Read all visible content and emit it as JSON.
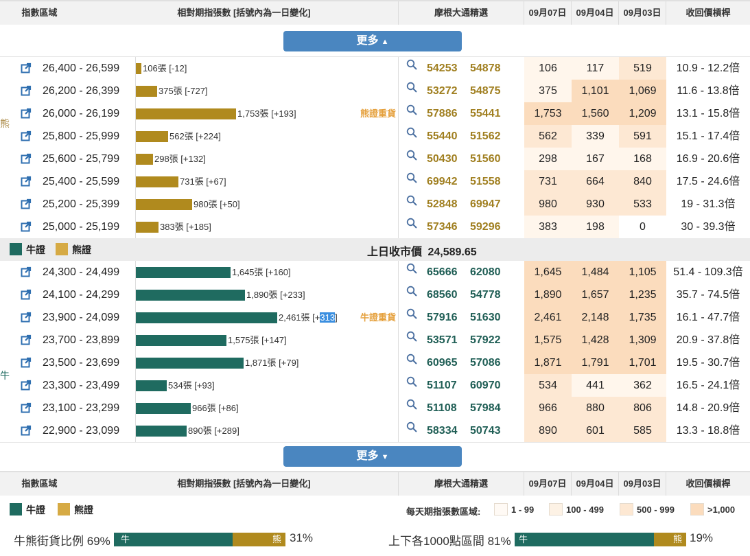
{
  "header": {
    "col_range": "指數區域",
    "col_bar": "相對期指張數 [括號內為一日變化]",
    "col_jpm": "摩根大通精選",
    "col_d1": "09月07日",
    "col_d2": "09月04日",
    "col_d3": "09月03日",
    "col_lev": "收回價槓桿"
  },
  "more_label": "更多",
  "bear_side_label": "熊",
  "bull_side_label": "牛",
  "bear_rows": [
    {
      "range": "26,400 - 26,599",
      "bar_pct": 0.04,
      "bar_label": "106張 [-12]",
      "tag": "",
      "code1": "54253",
      "code2": "54878",
      "d1": "106",
      "d2": "117",
      "d3": "519",
      "d1_level": 1,
      "d2_level": 1,
      "d3_level": 3,
      "lev": "10.9 - 12.2倍"
    },
    {
      "range": "26,200 - 26,399",
      "bar_pct": 0.15,
      "bar_label": "375張 [-727]",
      "tag": "",
      "code1": "53272",
      "code2": "54875",
      "d1": "375",
      "d2": "1,101",
      "d3": "1,069",
      "d1_level": 1,
      "d2_level": 4,
      "d3_level": 4,
      "lev": "11.6 - 13.8倍"
    },
    {
      "range": "26,000 - 26,199",
      "bar_pct": 0.71,
      "bar_label": "1,753張 [+193]",
      "tag": "熊證重貨",
      "code1": "57886",
      "code2": "55441",
      "d1": "1,753",
      "d2": "1,560",
      "d3": "1,209",
      "d1_level": 4,
      "d2_level": 4,
      "d3_level": 4,
      "lev": "13.1 - 15.8倍"
    },
    {
      "range": "25,800 - 25,999",
      "bar_pct": 0.23,
      "bar_label": "562張 [+224]",
      "tag": "",
      "code1": "55440",
      "code2": "51562",
      "d1": "562",
      "d2": "339",
      "d3": "591",
      "d1_level": 3,
      "d2_level": 1,
      "d3_level": 3,
      "lev": "15.1 - 17.4倍"
    },
    {
      "range": "25,600 - 25,799",
      "bar_pct": 0.12,
      "bar_label": "298張 [+132]",
      "tag": "",
      "code1": "50430",
      "code2": "51560",
      "d1": "298",
      "d2": "167",
      "d3": "168",
      "d1_level": 1,
      "d2_level": 1,
      "d3_level": 1,
      "lev": "16.9 - 20.6倍"
    },
    {
      "range": "25,400 - 25,599",
      "bar_pct": 0.3,
      "bar_label": "731張 [+67]",
      "tag": "",
      "code1": "69942",
      "code2": "51558",
      "d1": "731",
      "d2": "664",
      "d3": "840",
      "d1_level": 3,
      "d2_level": 3,
      "d3_level": 3,
      "lev": "17.5 - 24.6倍"
    },
    {
      "range": "25,200 - 25,399",
      "bar_pct": 0.4,
      "bar_label": "980張 [+50]",
      "tag": "",
      "code1": "52848",
      "code2": "69947",
      "d1": "980",
      "d2": "930",
      "d3": "533",
      "d1_level": 3,
      "d2_level": 3,
      "d3_level": 3,
      "lev": "19 - 31.3倍"
    },
    {
      "range": "25,000 - 25,199",
      "bar_pct": 0.16,
      "bar_label": "383張 [+185]",
      "tag": "",
      "code1": "57346",
      "code2": "59296",
      "d1": "383",
      "d2": "198",
      "d3": "0",
      "d1_level": 1,
      "d2_level": 1,
      "d3_level": 0,
      "lev": "30 - 39.3倍"
    }
  ],
  "middle": {
    "bull_legend": "牛證",
    "bear_legend": "熊證",
    "close_label": "上日收市價",
    "close_value": "24,589.65"
  },
  "bull_rows": [
    {
      "range": "24,300 - 24,499",
      "bar_pct": 0.67,
      "bar_label": "1,645張 [+160]",
      "tag": "",
      "code1": "65666",
      "code2": "62080",
      "d1": "1,645",
      "d2": "1,484",
      "d3": "1,105",
      "d1_level": 4,
      "d2_level": 4,
      "d3_level": 4,
      "lev": "51.4 - 109.3倍"
    },
    {
      "range": "24,100 - 24,299",
      "bar_pct": 0.77,
      "bar_label": "1,890張 [+233]",
      "tag": "",
      "code1": "68560",
      "code2": "54778",
      "d1": "1,890",
      "d2": "1,657",
      "d3": "1,235",
      "d1_level": 4,
      "d2_level": 4,
      "d3_level": 4,
      "lev": "35.7 - 74.5倍"
    },
    {
      "range": "23,900 - 24,099",
      "bar_pct": 1.0,
      "bar_label_pre": "2,461張 [+",
      "bar_label_hl": "313",
      "bar_label_post": "]",
      "tag": "牛證重貨",
      "code1": "57916",
      "code2": "51630",
      "d1": "2,461",
      "d2": "2,148",
      "d3": "1,735",
      "d1_level": 4,
      "d2_level": 4,
      "d3_level": 4,
      "lev": "16.1 - 47.7倍"
    },
    {
      "range": "23,700 - 23,899",
      "bar_pct": 0.64,
      "bar_label": "1,575張 [+147]",
      "tag": "",
      "code1": "53571",
      "code2": "57922",
      "d1": "1,575",
      "d2": "1,428",
      "d3": "1,309",
      "d1_level": 4,
      "d2_level": 4,
      "d3_level": 4,
      "lev": "20.9 - 37.8倍"
    },
    {
      "range": "23,500 - 23,699",
      "bar_pct": 0.76,
      "bar_label": "1,871張 [+79]",
      "tag": "",
      "code1": "60965",
      "code2": "57086",
      "d1": "1,871",
      "d2": "1,791",
      "d3": "1,701",
      "d1_level": 4,
      "d2_level": 4,
      "d3_level": 4,
      "lev": "19.5 - 30.7倍"
    },
    {
      "range": "23,300 - 23,499",
      "bar_pct": 0.22,
      "bar_label": "534張 [+93]",
      "tag": "",
      "code1": "51107",
      "code2": "60970",
      "d1": "534",
      "d2": "441",
      "d3": "362",
      "d1_level": 3,
      "d2_level": 1,
      "d3_level": 1,
      "lev": "16.5 - 24.1倍"
    },
    {
      "range": "23,100 - 23,299",
      "bar_pct": 0.39,
      "bar_label": "966張 [+86]",
      "tag": "",
      "code1": "51108",
      "code2": "57984",
      "d1": "966",
      "d2": "880",
      "d3": "806",
      "d1_level": 3,
      "d2_level": 3,
      "d3_level": 3,
      "lev": "14.8 - 20.9倍"
    },
    {
      "range": "22,900 - 23,099",
      "bar_pct": 0.36,
      "bar_label": "890張 [+289]",
      "tag": "",
      "code1": "58334",
      "code2": "50743",
      "d1": "890",
      "d2": "601",
      "d3": "585",
      "d1_level": 3,
      "d2_level": 3,
      "d3_level": 3,
      "lev": "13.3 - 18.8倍"
    }
  ],
  "legend": {
    "bull": "牛證",
    "bear": "熊證",
    "scale_title": "每天期指張數區域:",
    "scale_items": [
      "1 - 99",
      "100 - 499",
      "500 - 999",
      ">1,000"
    ]
  },
  "ratios": {
    "left_label": "牛熊街貨比例",
    "left_bull_pct": "69%",
    "left_bear_pct": "31%",
    "left_bull_value": 0.69,
    "right_label": "上下各1000點區間",
    "right_bull_pct": "81%",
    "right_bear_pct": "19%",
    "right_bull_value": 0.81,
    "bull_short": "牛",
    "bear_short": "熊"
  },
  "colors": {
    "bull": "#1f6b60",
    "bear": "#b08a1e",
    "bear_code": "#a07f20",
    "bull_code": "#1f5e55",
    "heat0": "#ffffff",
    "heat1": "#fff6ec",
    "heat2": "#fdf0e0",
    "heat3": "#fde8d3",
    "heat4": "#fbdcbd",
    "button": "#4a86c0"
  }
}
